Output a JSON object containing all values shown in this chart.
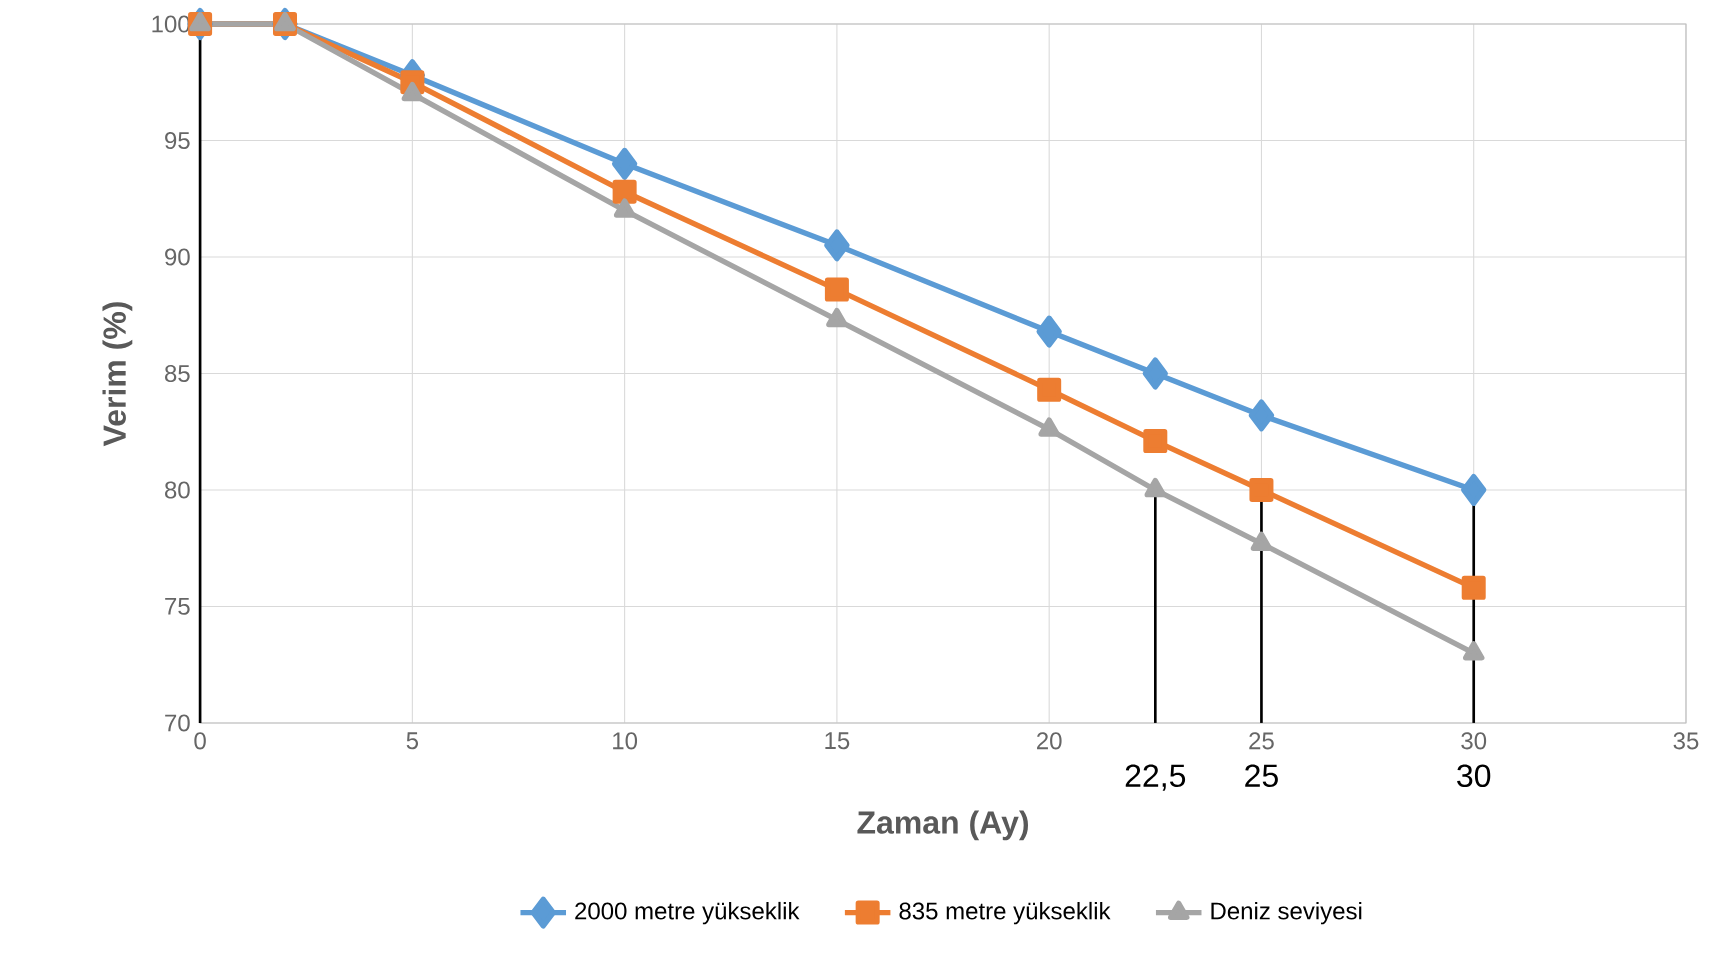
{
  "chart_data": {
    "type": "line",
    "xlabel": "Zaman (Ay)",
    "ylabel": "Verim (%)",
    "x": [
      0,
      2,
      5,
      10,
      15,
      20,
      22.5,
      25,
      30
    ],
    "series": [
      {
        "name": "2000 metre yükseklik",
        "color": "#5b9bd5",
        "marker": "diamond",
        "values": [
          100,
          100,
          97.8,
          94,
          90.5,
          86.8,
          85,
          83.2,
          80
        ]
      },
      {
        "name": "835 metre yükseklik",
        "color": "#ed7d31",
        "marker": "square",
        "values": [
          100,
          100,
          97.5,
          92.8,
          88.6,
          84.3,
          82.1,
          80,
          75.8
        ]
      },
      {
        "name": "Deniz seviyesi",
        "color": "#a5a5a5",
        "marker": "triangle",
        "values": [
          100,
          100,
          97,
          92,
          87.3,
          82.6,
          80,
          77.7,
          73
        ]
      }
    ],
    "xlim": [
      0,
      35
    ],
    "xticks": [
      0,
      5,
      10,
      15,
      20,
      25,
      30,
      35
    ],
    "ylim": [
      70,
      100
    ],
    "yticks": [
      70,
      75,
      80,
      85,
      90,
      95,
      100
    ],
    "grid": true,
    "legend": "bottom",
    "annotations": [
      {
        "text": "22,5",
        "x": 22.5,
        "y": 80
      },
      {
        "text": "25",
        "x": 25,
        "y": 80
      },
      {
        "text": "30",
        "x": 30,
        "y": 80
      }
    ]
  }
}
